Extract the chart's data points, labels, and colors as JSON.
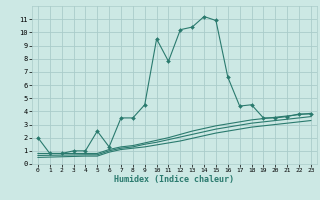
{
  "xlabel": "Humidex (Indice chaleur)",
  "bg_color": "#cce8e4",
  "grid_color": "#aaccca",
  "line_color": "#2a7a6e",
  "xlim": [
    -0.5,
    23.5
  ],
  "ylim": [
    0,
    12
  ],
  "xticks": [
    0,
    1,
    2,
    3,
    4,
    5,
    6,
    7,
    8,
    9,
    10,
    11,
    12,
    13,
    14,
    15,
    16,
    17,
    18,
    19,
    20,
    21,
    22,
    23
  ],
  "yticks": [
    0,
    1,
    2,
    3,
    4,
    5,
    6,
    7,
    8,
    9,
    10,
    11
  ],
  "main_x": [
    0,
    1,
    2,
    3,
    4,
    5,
    6,
    7,
    8,
    9,
    10,
    11,
    12,
    13,
    14,
    15,
    16,
    17,
    18,
    19,
    20,
    21,
    22,
    23
  ],
  "main_y": [
    2.0,
    0.8,
    0.8,
    1.0,
    1.0,
    2.5,
    1.3,
    3.5,
    3.5,
    4.5,
    9.5,
    7.8,
    10.2,
    10.4,
    11.2,
    10.9,
    6.6,
    4.4,
    4.5,
    3.5,
    3.5,
    3.6,
    3.8,
    3.8
  ],
  "line1_x": [
    0,
    4,
    5,
    6,
    7,
    8,
    9,
    10,
    11,
    12,
    13,
    14,
    15,
    16,
    17,
    18,
    19,
    20,
    21,
    22,
    23
  ],
  "line1_y": [
    0.5,
    0.6,
    0.6,
    0.9,
    1.1,
    1.2,
    1.3,
    1.45,
    1.6,
    1.75,
    1.95,
    2.15,
    2.35,
    2.5,
    2.65,
    2.8,
    2.9,
    3.0,
    3.1,
    3.2,
    3.3
  ],
  "line2_x": [
    0,
    4,
    5,
    6,
    7,
    8,
    9,
    10,
    11,
    12,
    13,
    14,
    15,
    16,
    17,
    18,
    19,
    20,
    21,
    22,
    23
  ],
  "line2_y": [
    0.65,
    0.7,
    0.7,
    1.0,
    1.2,
    1.3,
    1.5,
    1.65,
    1.85,
    2.05,
    2.25,
    2.45,
    2.65,
    2.8,
    2.95,
    3.1,
    3.2,
    3.3,
    3.4,
    3.5,
    3.6
  ],
  "line3_x": [
    0,
    4,
    5,
    6,
    7,
    8,
    9,
    10,
    11,
    12,
    13,
    14,
    15,
    16,
    17,
    18,
    19,
    20,
    21,
    22,
    23
  ],
  "line3_y": [
    0.8,
    0.8,
    0.8,
    1.1,
    1.3,
    1.4,
    1.6,
    1.8,
    2.0,
    2.25,
    2.5,
    2.7,
    2.9,
    3.05,
    3.2,
    3.35,
    3.45,
    3.55,
    3.65,
    3.75,
    3.85
  ]
}
